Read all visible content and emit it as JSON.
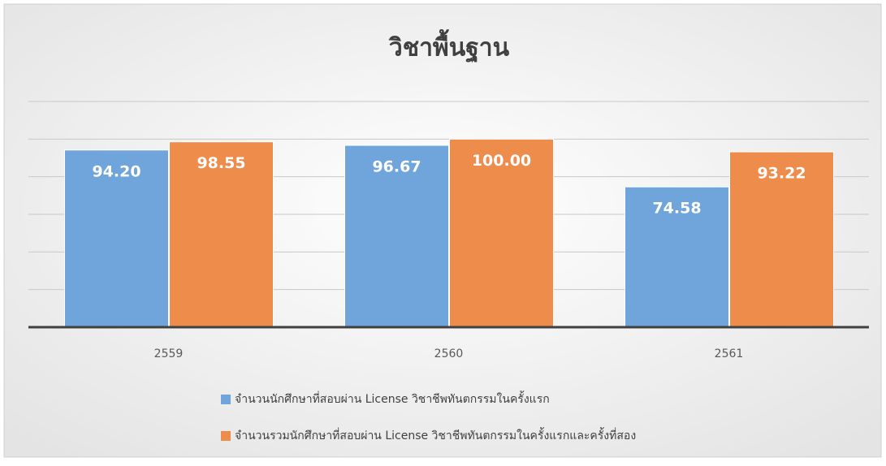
{
  "chart_data": {
    "type": "bar",
    "title": "วิชาพื้นฐาน",
    "categories": [
      "2559",
      "2560",
      "2561"
    ],
    "series": [
      {
        "name": "จำนวนนักศึกษาที่สอบผ่าน License วิชาชีพทันตกรรมในครั้งแรก",
        "color": "#6fa5da",
        "values": [
          94.2,
          96.67,
          74.58
        ],
        "value_labels": [
          "94.20",
          "96.67",
          "74.58"
        ]
      },
      {
        "name": "จำนวนรวมนักศึกษาที่สอบผ่าน License วิชาชีพทันตกรรมในครั้งแรกและครั้งที่สอง",
        "color": "#ee8c4b",
        "values": [
          98.55,
          100,
          93.22
        ],
        "value_labels": [
          "98.55",
          "100.00",
          "93.22"
        ]
      }
    ],
    "ylim": [
      0,
      120
    ],
    "yticks": [
      0,
      20,
      40,
      60,
      80,
      100,
      120
    ],
    "grid": true,
    "legend": "bottom"
  }
}
